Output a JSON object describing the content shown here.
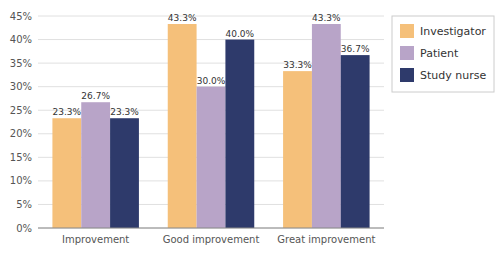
{
  "chart_data": {
    "type": "bar",
    "categories": [
      "Improvement",
      "Good improvement",
      "Great improvement"
    ],
    "series": [
      {
        "name": "Investigator",
        "color": "#F5C07A",
        "values": [
          23.3,
          43.3,
          33.3
        ],
        "value_labels": [
          "23.3%",
          "43.3%",
          "33.3%"
        ]
      },
      {
        "name": "Patient",
        "color": "#B8A4C8",
        "values": [
          26.7,
          30.0,
          43.3
        ],
        "value_labels": [
          "26.7%",
          "30.0%",
          "43.3%"
        ]
      },
      {
        "name": "Study nurse",
        "color": "#2E3A6B",
        "values": [
          23.3,
          40.0,
          36.7
        ],
        "value_labels": [
          "23.3%",
          "40.0%",
          "36.7%"
        ]
      }
    ],
    "ylim": [
      0,
      45
    ],
    "yticks": [
      {
        "value": 0,
        "label": "0%"
      },
      {
        "value": 5,
        "label": "5%"
      },
      {
        "value": 10,
        "label": "10%"
      },
      {
        "value": 15,
        "label": "15%"
      },
      {
        "value": 20,
        "label": "20%"
      },
      {
        "value": 25,
        "label": "25%"
      },
      {
        "value": 30,
        "label": "30%"
      },
      {
        "value": 35,
        "label": "35%"
      },
      {
        "value": 40,
        "label": "40%"
      },
      {
        "value": 45,
        "label": "45%"
      }
    ],
    "grid": true,
    "legend": "right",
    "data_labels": true
  }
}
